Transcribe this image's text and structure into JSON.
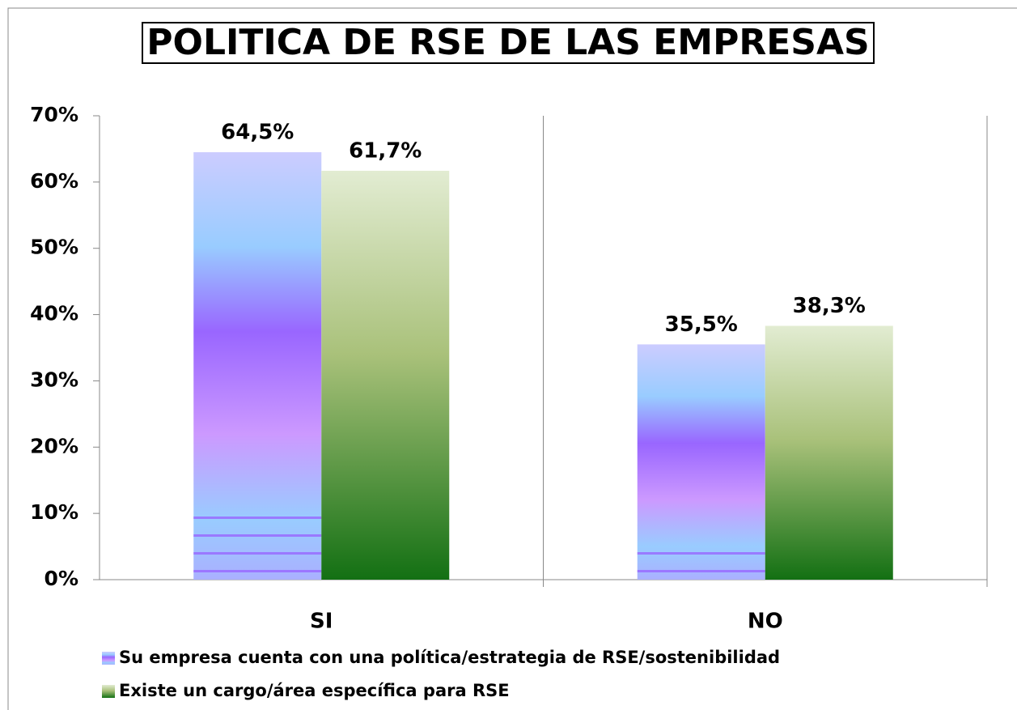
{
  "chart_data": {
    "type": "bar",
    "title": "POLITICA DE RSE DE LAS EMPRESAS",
    "categories": [
      "SI",
      "NO"
    ],
    "series": [
      {
        "name": "Su empresa cuenta con una política/estrategia de RSE/sostenibilidad",
        "color": "#9966ff",
        "values": [
          64.5,
          35.5
        ],
        "value_labels": [
          "64,5%",
          "35,5%"
        ]
      },
      {
        "name": "Existe un cargo/área específica para RSE",
        "color": "#4e8f3a",
        "values": [
          61.7,
          38.3
        ],
        "value_labels": [
          "61,7%",
          "38,3%"
        ]
      }
    ],
    "ylim": [
      0,
      70
    ],
    "yticks": [
      {
        "value": 0,
        "label": "0%"
      },
      {
        "value": 10,
        "label": "10%"
      },
      {
        "value": 20,
        "label": "20%"
      },
      {
        "value": 30,
        "label": "30%"
      },
      {
        "value": 40,
        "label": "40%"
      },
      {
        "value": 50,
        "label": "50%"
      },
      {
        "value": 60,
        "label": "60%"
      },
      {
        "value": 70,
        "label": "70%"
      }
    ],
    "legend": "bottom"
  }
}
